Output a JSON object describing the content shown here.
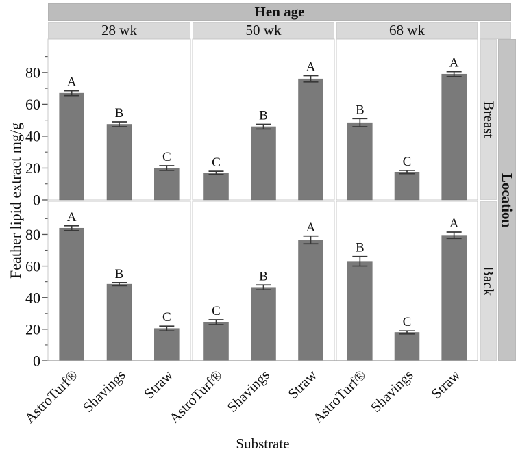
{
  "chart_data": {
    "type": "bar",
    "title": "Hen age",
    "facet_columns": [
      "28 wk",
      "50 wk",
      "68 wk"
    ],
    "facet_rows": [
      "Breast",
      "Back"
    ],
    "row_group_label": "Location",
    "categories": [
      "AstroTurf®",
      "Shavings",
      "Straw"
    ],
    "xlabel": "Substrate",
    "ylabel": "Feather lipid extract mg/g",
    "ylim": [
      0,
      101
    ],
    "yticks": [
      0,
      20,
      40,
      60,
      80
    ],
    "yticks_minor": [
      10,
      30,
      50,
      70,
      90
    ],
    "grid": false,
    "legend": "none",
    "error_bars": true,
    "panels": [
      {
        "row": "Breast",
        "col": "28 wk",
        "values": [
          67,
          47.5,
          20
        ],
        "errors": [
          1.5,
          1.5,
          1.5
        ],
        "letters": [
          "A",
          "B",
          "C"
        ]
      },
      {
        "row": "Breast",
        "col": "50 wk",
        "values": [
          17,
          46,
          76
        ],
        "errors": [
          1,
          1.5,
          2
        ],
        "letters": [
          "C",
          "B",
          "A"
        ]
      },
      {
        "row": "Breast",
        "col": "68 wk",
        "values": [
          48.5,
          17.5,
          79
        ],
        "errors": [
          2.5,
          1,
          1.5
        ],
        "letters": [
          "B",
          "C",
          "A"
        ]
      },
      {
        "row": "Back",
        "col": "28 wk",
        "values": [
          84,
          48.5,
          20.5
        ],
        "errors": [
          1.5,
          1,
          1.5
        ],
        "letters": [
          "A",
          "B",
          "C"
        ]
      },
      {
        "row": "Back",
        "col": "50 wk",
        "values": [
          24.5,
          46.5,
          76.5
        ],
        "errors": [
          1.5,
          1.5,
          2.5
        ],
        "letters": [
          "C",
          "B",
          "A"
        ]
      },
      {
        "row": "Back",
        "col": "68 wk",
        "values": [
          63,
          18,
          79.5
        ],
        "errors": [
          3,
          1,
          2
        ],
        "letters": [
          "B",
          "C",
          "A"
        ]
      }
    ],
    "colors": {
      "bar_fill": "#7a7a7a",
      "bar_edge": "#6e6e6e",
      "error_bar": "#383838",
      "strip_dark": "#bcbcbc",
      "strip_light": "#d9d9d9",
      "strip_row": "#dcdcdc",
      "strip_group": "#c3c3c3",
      "panel_border": "#c9c9c9",
      "axis_line": "#a8a8a8",
      "tick": "#555555",
      "text": "#111111"
    }
  }
}
